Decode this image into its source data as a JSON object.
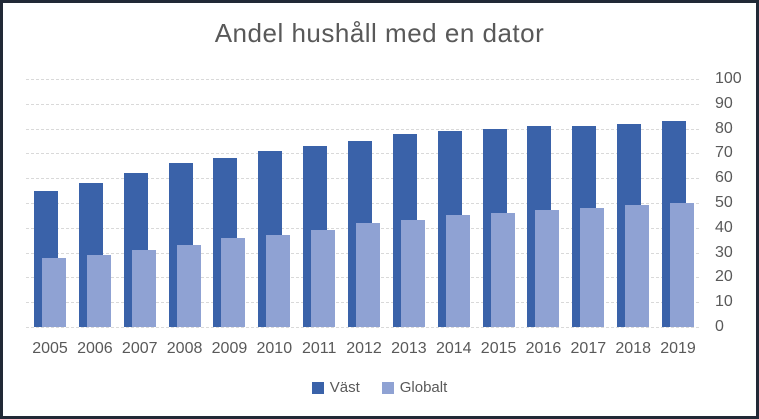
{
  "chart_data": {
    "type": "bar",
    "title": "Andel hushåll med en dator",
    "categories": [
      "2005",
      "2006",
      "2007",
      "2008",
      "2009",
      "2010",
      "2011",
      "2012",
      "2013",
      "2014",
      "2015",
      "2016",
      "2017",
      "2018",
      "2019"
    ],
    "series": [
      {
        "name": "Väst",
        "color": "#3A62A9",
        "values": [
          55,
          58,
          62,
          66,
          68,
          71,
          73,
          75,
          78,
          79,
          80,
          81,
          81,
          82,
          83
        ]
      },
      {
        "name": "Globalt",
        "color": "#8FA2D3",
        "values": [
          28,
          29,
          31,
          33,
          36,
          37,
          39,
          42,
          43,
          45,
          46,
          47,
          48,
          49,
          50
        ]
      }
    ],
    "xlabel": "",
    "ylabel": "",
    "ylim": [
      0,
      100
    ],
    "yticks": [
      0,
      10,
      20,
      30,
      40,
      50,
      60,
      70,
      80,
      90,
      100
    ],
    "y_axis_side": "right",
    "legend_position": "bottom",
    "grid": true,
    "gridline_color": "#D9D9D9",
    "gridline_style": "dashed",
    "text_color": "#595959",
    "frame_border_color": "#212936",
    "background_color": "#FFFFFF"
  }
}
